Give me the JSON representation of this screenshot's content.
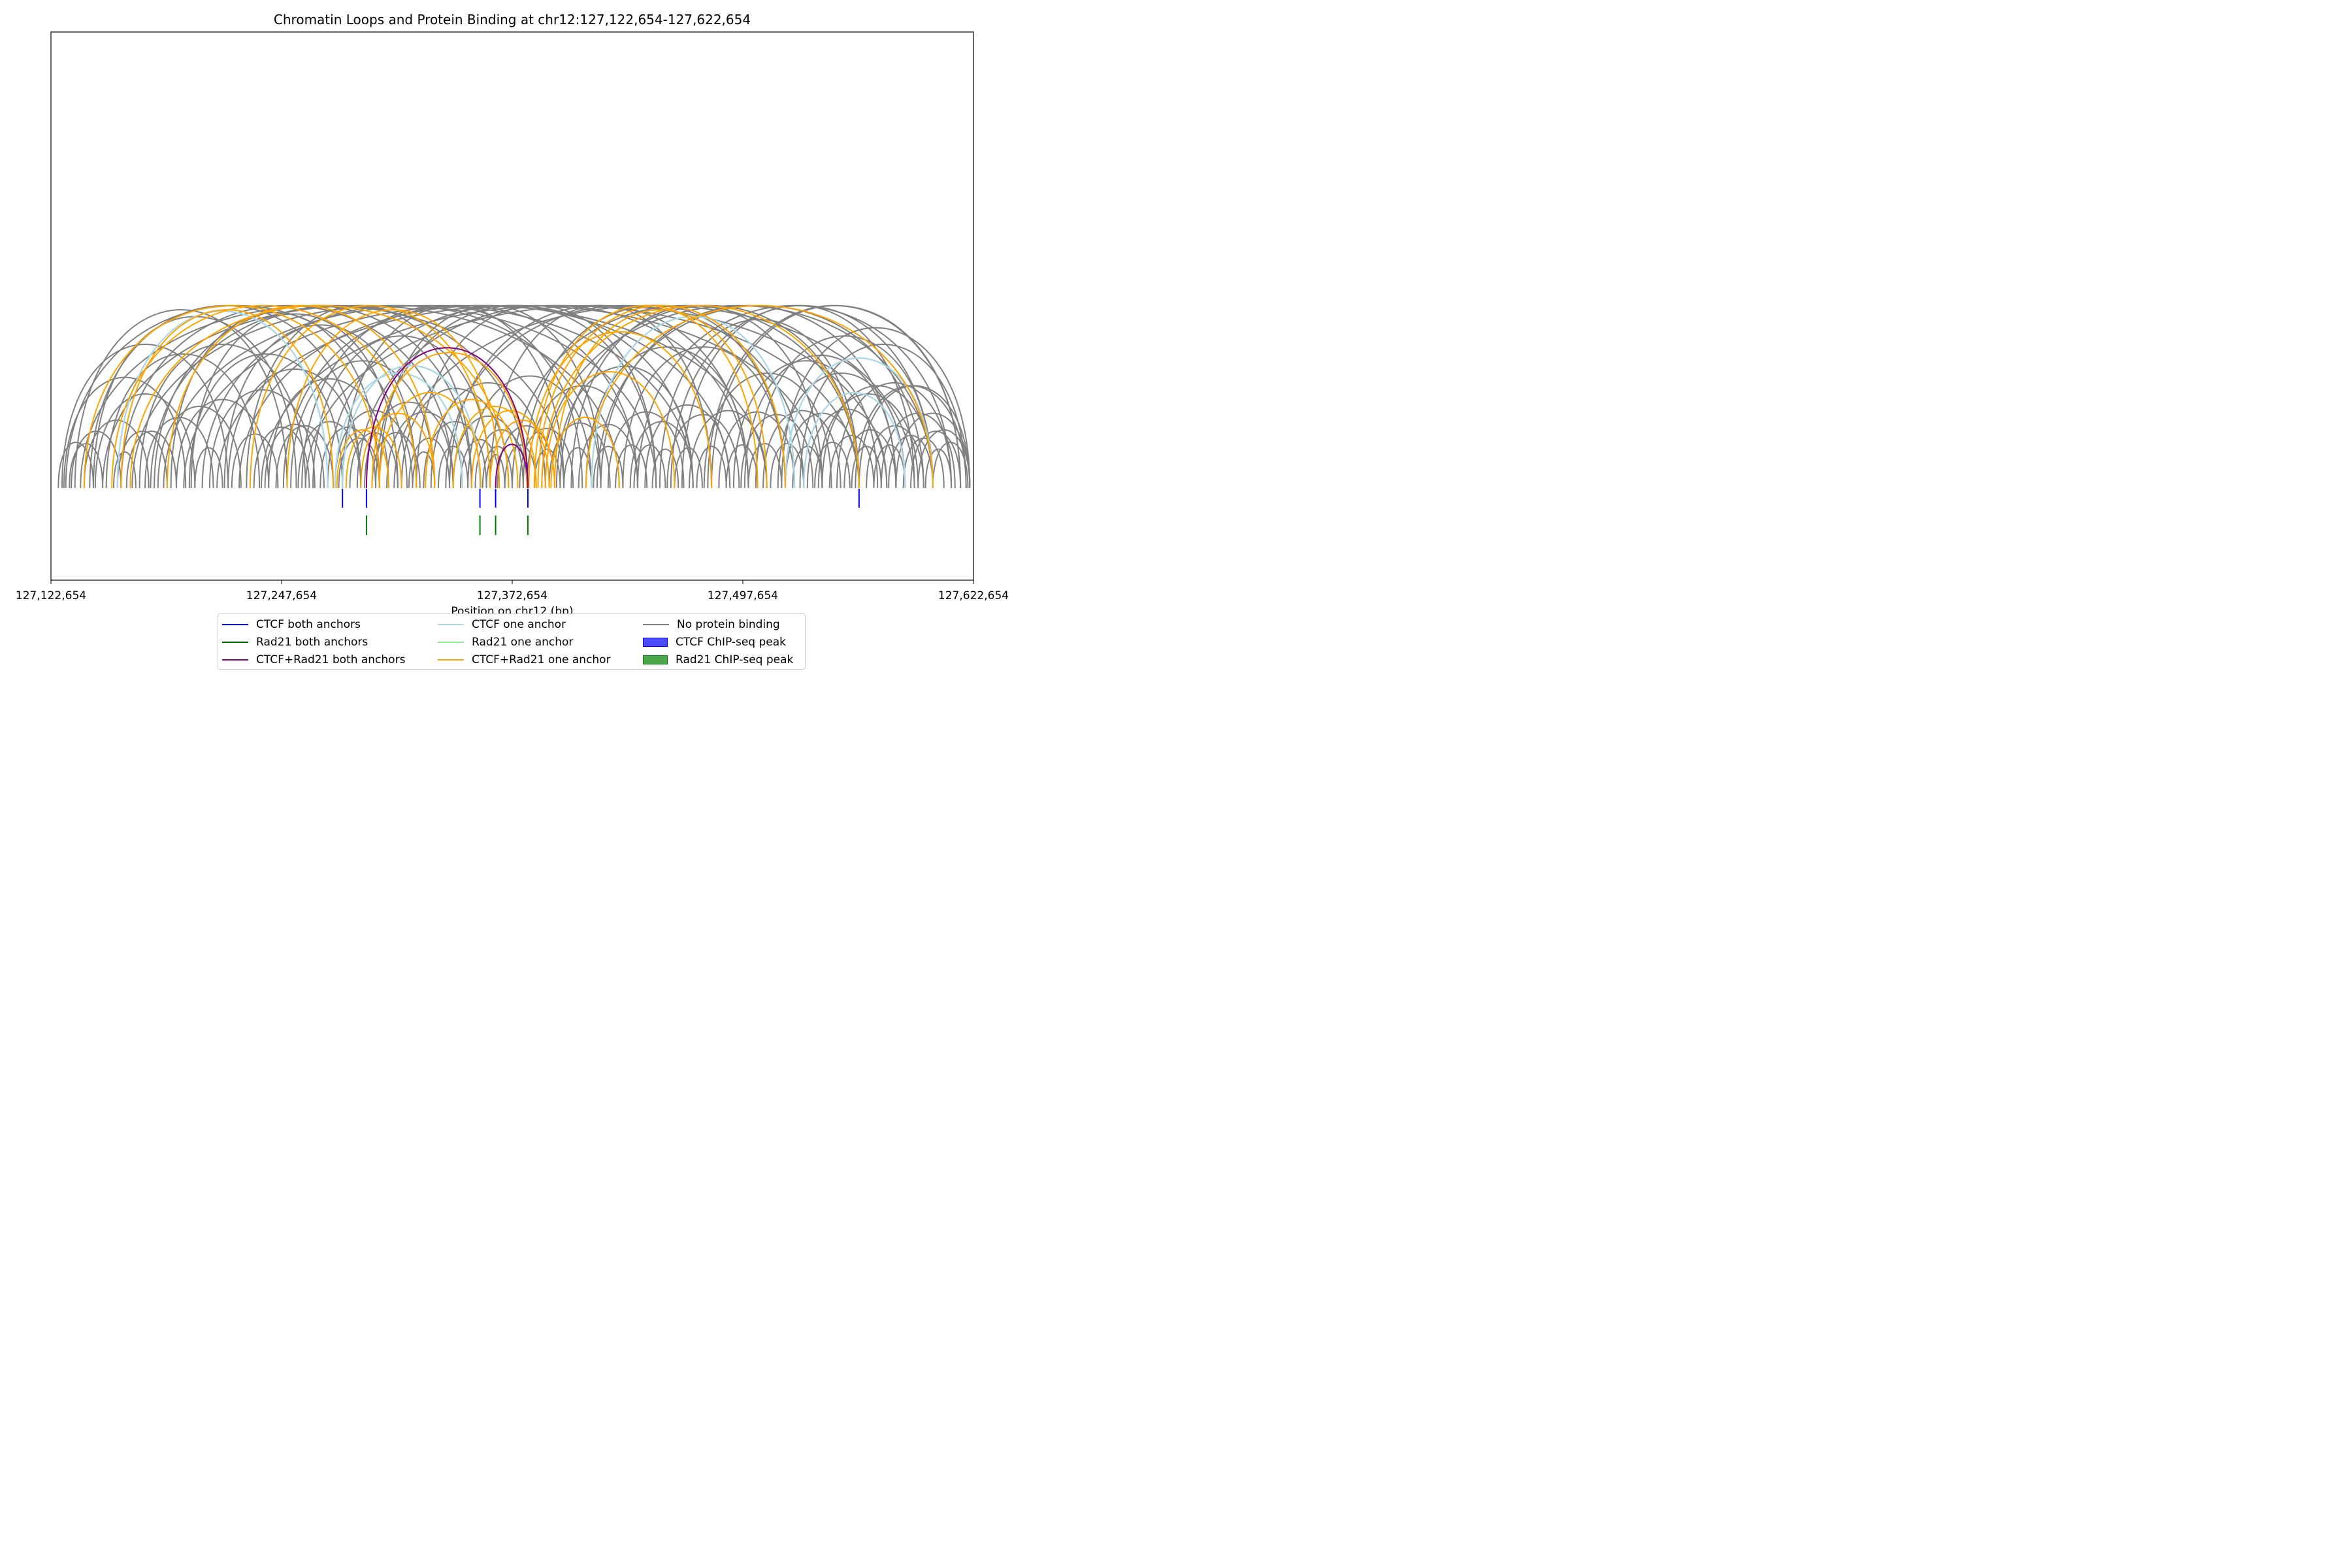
{
  "chart_data": {
    "type": "arc",
    "title": "Chromatin Loops and Protein Binding at chr12:127,122,654-127,622,654",
    "xlabel": "Position on chr12 (bp)",
    "ylabel": "",
    "xlim": [
      127122654,
      127622654
    ],
    "x_ticks": [
      "127,122,654",
      "127,247,654",
      "127,372,654",
      "127,497,654",
      "127,622,654"
    ],
    "x_tick_values": [
      127122654,
      127247654,
      127372654,
      127497654,
      127622654
    ],
    "colors": {
      "ctcf_both": "#0000ff",
      "rad21_both": "#006400",
      "both_both": "#800080",
      "ctcf_one": "#add8e6",
      "rad21_one": "#90ee90",
      "both_one": "#ffa500",
      "none": "#808080",
      "ctcf_peak": "#0000ff",
      "rad21_peak": "#008000"
    },
    "legend": {
      "ctcf_both": "CTCF both anchors",
      "rad21_both": "Rad21 both anchors",
      "both_both": "CTCF+Rad21 both anchors",
      "ctcf_one": "CTCF one anchor",
      "rad21_one": "Rad21 one anchor",
      "both_one": "CTCF+Rad21 one anchor",
      "none": "No protein binding",
      "ctcf_peak": "CTCF ChIP-seq peak",
      "rad21_peak": "Rad21 ChIP-seq peak"
    },
    "ctcf_peaks": [
      127280654,
      127293654,
      127355154,
      127363654,
      127381154,
      127560654
    ],
    "rad21_peaks": [
      127293654,
      127355154,
      127363654,
      127381154
    ],
    "loops": [
      {
        "start": 127293654,
        "end": 127381154,
        "category": "both_both"
      },
      {
        "start": 127363654,
        "end": 127381154,
        "category": "both_both"
      },
      {
        "start": 127280654,
        "end": 127355154,
        "category": "ctcf_one"
      },
      {
        "start": 127158654,
        "end": 127272654,
        "category": "ctcf_one"
      },
      {
        "start": 127415654,
        "end": 127525654,
        "category": "ctcf_one"
      },
      {
        "start": 127530654,
        "end": 127585654,
        "category": "ctcf_one"
      },
      {
        "start": 127520654,
        "end": 127600654,
        "category": "ctcf_one"
      },
      {
        "start": 127276654,
        "end": 127345654,
        "category": "ctcf_one"
      },
      {
        "start": 127160654,
        "end": 127275654,
        "category": "both_one"
      },
      {
        "start": 127140654,
        "end": 127300654,
        "category": "both_one"
      },
      {
        "start": 127155654,
        "end": 127320654,
        "category": "both_one"
      },
      {
        "start": 127165654,
        "end": 127370654,
        "category": "both_one"
      },
      {
        "start": 127185654,
        "end": 127330654,
        "category": "both_one"
      },
      {
        "start": 127230654,
        "end": 127360654,
        "category": "both_one"
      },
      {
        "start": 127250654,
        "end": 127365654,
        "category": "both_one"
      },
      {
        "start": 127277654,
        "end": 127305654,
        "category": "both_one"
      },
      {
        "start": 127282654,
        "end": 127312654,
        "category": "both_one"
      },
      {
        "start": 127290654,
        "end": 127330654,
        "category": "both_one"
      },
      {
        "start": 127300654,
        "end": 127355654,
        "category": "both_one"
      },
      {
        "start": 127325654,
        "end": 127375654,
        "category": "both_one"
      },
      {
        "start": 127340654,
        "end": 127385654,
        "category": "both_one"
      },
      {
        "start": 127350654,
        "end": 127392654,
        "category": "both_one"
      },
      {
        "start": 127360654,
        "end": 127395654,
        "category": "both_one"
      },
      {
        "start": 127381654,
        "end": 127480654,
        "category": "both_one"
      },
      {
        "start": 127384654,
        "end": 127505654,
        "category": "both_one"
      },
      {
        "start": 127386654,
        "end": 127520654,
        "category": "both_one"
      },
      {
        "start": 127388654,
        "end": 127560654,
        "category": "both_one"
      },
      {
        "start": 127390654,
        "end": 127460654,
        "category": "both_one"
      },
      {
        "start": 127393654,
        "end": 127430654,
        "category": "both_one"
      },
      {
        "start": 127412654,
        "end": 127600654,
        "category": "both_one"
      },
      {
        "start": 127395654,
        "end": 127510654,
        "category": "both_one"
      },
      {
        "start": 127296654,
        "end": 127380654,
        "category": "both_one"
      },
      {
        "start": 127128654,
        "end": 127218654,
        "category": "none"
      },
      {
        "start": 127130654,
        "end": 127315654,
        "category": "none"
      },
      {
        "start": 127133654,
        "end": 127160654,
        "category": "none"
      },
      {
        "start": 127135654,
        "end": 127250654,
        "category": "none"
      },
      {
        "start": 127138654,
        "end": 127400654,
        "category": "none"
      },
      {
        "start": 127140654,
        "end": 127175654,
        "category": "none"
      },
      {
        "start": 127143654,
        "end": 127290654,
        "category": "none"
      },
      {
        "start": 127146654,
        "end": 127200654,
        "category": "none"
      },
      {
        "start": 127150654,
        "end": 127430654,
        "category": "none"
      },
      {
        "start": 127152654,
        "end": 127235654,
        "category": "none"
      },
      {
        "start": 127156654,
        "end": 127168654,
        "category": "none"
      },
      {
        "start": 127160654,
        "end": 127340654,
        "category": "none"
      },
      {
        "start": 127163654,
        "end": 127190654,
        "category": "none"
      },
      {
        "start": 127166654,
        "end": 127450654,
        "category": "none"
      },
      {
        "start": 127170654,
        "end": 127260654,
        "category": "none"
      },
      {
        "start": 127173654,
        "end": 127210654,
        "category": "none"
      },
      {
        "start": 127176654,
        "end": 127380654,
        "category": "none"
      },
      {
        "start": 127180654,
        "end": 127225654,
        "category": "none"
      },
      {
        "start": 127183654,
        "end": 127470654,
        "category": "none"
      },
      {
        "start": 127187654,
        "end": 127300654,
        "category": "none"
      },
      {
        "start": 127190654,
        "end": 127240654,
        "category": "none"
      },
      {
        "start": 127194654,
        "end": 127510654,
        "category": "none"
      },
      {
        "start": 127197654,
        "end": 127280654,
        "category": "none"
      },
      {
        "start": 127200654,
        "end": 127215654,
        "category": "none"
      },
      {
        "start": 127204654,
        "end": 127420654,
        "category": "none"
      },
      {
        "start": 127208654,
        "end": 127265654,
        "category": "none"
      },
      {
        "start": 127212654,
        "end": 127540654,
        "category": "none"
      },
      {
        "start": 127216654,
        "end": 127320654,
        "category": "none"
      },
      {
        "start": 127220654,
        "end": 127245654,
        "category": "none"
      },
      {
        "start": 127224654,
        "end": 127490654,
        "category": "none"
      },
      {
        "start": 127228654,
        "end": 127350654,
        "category": "none"
      },
      {
        "start": 127232654,
        "end": 127262654,
        "category": "none"
      },
      {
        "start": 127236654,
        "end": 127560654,
        "category": "none"
      },
      {
        "start": 127240654,
        "end": 127305654,
        "category": "none"
      },
      {
        "start": 127244654,
        "end": 127275654,
        "category": "none"
      },
      {
        "start": 127248654,
        "end": 127440654,
        "category": "none"
      },
      {
        "start": 127252654,
        "end": 127330654,
        "category": "none"
      },
      {
        "start": 127256654,
        "end": 127290654,
        "category": "none"
      },
      {
        "start": 127260654,
        "end": 127575654,
        "category": "none"
      },
      {
        "start": 127264654,
        "end": 127360654,
        "category": "none"
      },
      {
        "start": 127268654,
        "end": 127298654,
        "category": "none"
      },
      {
        "start": 127272654,
        "end": 127470654,
        "category": "none"
      },
      {
        "start": 127276654,
        "end": 127318654,
        "category": "none"
      },
      {
        "start": 127280654,
        "end": 127400654,
        "category": "none"
      },
      {
        "start": 127284654,
        "end": 127310654,
        "category": "none"
      },
      {
        "start": 127288654,
        "end": 127500654,
        "category": "none"
      },
      {
        "start": 127292654,
        "end": 127340654,
        "category": "none"
      },
      {
        "start": 127296654,
        "end": 127322654,
        "category": "none"
      },
      {
        "start": 127300654,
        "end": 127420654,
        "category": "none"
      },
      {
        "start": 127304654,
        "end": 127345654,
        "category": "none"
      },
      {
        "start": 127308654,
        "end": 127590654,
        "category": "none"
      },
      {
        "start": 127312654,
        "end": 127370654,
        "category": "none"
      },
      {
        "start": 127316654,
        "end": 127338654,
        "category": "none"
      },
      {
        "start": 127320654,
        "end": 127450654,
        "category": "none"
      },
      {
        "start": 127324654,
        "end": 127358654,
        "category": "none"
      },
      {
        "start": 127328654,
        "end": 127390654,
        "category": "none"
      },
      {
        "start": 127332654,
        "end": 127348654,
        "category": "none"
      },
      {
        "start": 127336654,
        "end": 127530654,
        "category": "none"
      },
      {
        "start": 127340654,
        "end": 127378654,
        "category": "none"
      },
      {
        "start": 127344654,
        "end": 127365654,
        "category": "none"
      },
      {
        "start": 127348654,
        "end": 127415654,
        "category": "none"
      },
      {
        "start": 127352654,
        "end": 127380654,
        "category": "none"
      },
      {
        "start": 127356654,
        "end": 127372654,
        "category": "none"
      },
      {
        "start": 127360654,
        "end": 127480654,
        "category": "none"
      },
      {
        "start": 127364654,
        "end": 127395654,
        "category": "none"
      },
      {
        "start": 127368654,
        "end": 127385654,
        "category": "none"
      },
      {
        "start": 127372654,
        "end": 127560654,
        "category": "none"
      },
      {
        "start": 127376654,
        "end": 127405654,
        "category": "none"
      },
      {
        "start": 127380654,
        "end": 127440654,
        "category": "none"
      },
      {
        "start": 127384654,
        "end": 127398654,
        "category": "none"
      },
      {
        "start": 127388654,
        "end": 127600654,
        "category": "none"
      },
      {
        "start": 127392654,
        "end": 127425654,
        "category": "none"
      },
      {
        "start": 127396654,
        "end": 127470654,
        "category": "none"
      },
      {
        "start": 127400654,
        "end": 127415654,
        "category": "none"
      },
      {
        "start": 127404654,
        "end": 127540654,
        "category": "none"
      },
      {
        "start": 127408654,
        "end": 127440654,
        "category": "none"
      },
      {
        "start": 127412654,
        "end": 127500654,
        "category": "none"
      },
      {
        "start": 127416654,
        "end": 127432654,
        "category": "none"
      },
      {
        "start": 127420654,
        "end": 127580654,
        "category": "none"
      },
      {
        "start": 127424654,
        "end": 127465654,
        "category": "none"
      },
      {
        "start": 127428654,
        "end": 127445654,
        "category": "none"
      },
      {
        "start": 127432654,
        "end": 127520654,
        "category": "none"
      },
      {
        "start": 127436654,
        "end": 127470654,
        "category": "none"
      },
      {
        "start": 127440654,
        "end": 127610654,
        "category": "none"
      },
      {
        "start": 127444654,
        "end": 127490654,
        "category": "none"
      },
      {
        "start": 127448654,
        "end": 127462654,
        "category": "none"
      },
      {
        "start": 127452654,
        "end": 127560654,
        "category": "none"
      },
      {
        "start": 127456654,
        "end": 127495654,
        "category": "none"
      },
      {
        "start": 127460654,
        "end": 127475654,
        "category": "none"
      },
      {
        "start": 127464654,
        "end": 127590654,
        "category": "none"
      },
      {
        "start": 127468654,
        "end": 127510654,
        "category": "none"
      },
      {
        "start": 127472654,
        "end": 127488654,
        "category": "none"
      },
      {
        "start": 127476654,
        "end": 127545654,
        "category": "none"
      },
      {
        "start": 127480654,
        "end": 127615654,
        "category": "none"
      },
      {
        "start": 127484654,
        "end": 127525654,
        "category": "none"
      },
      {
        "start": 127488654,
        "end": 127505654,
        "category": "none"
      },
      {
        "start": 127492654,
        "end": 127570654,
        "category": "none"
      },
      {
        "start": 127496654,
        "end": 127535654,
        "category": "none"
      },
      {
        "start": 127500654,
        "end": 127518654,
        "category": "none"
      },
      {
        "start": 127504654,
        "end": 127600654,
        "category": "none"
      },
      {
        "start": 127508654,
        "end": 127550654,
        "category": "none"
      },
      {
        "start": 127512654,
        "end": 127530654,
        "category": "none"
      },
      {
        "start": 127516654,
        "end": 127585654,
        "category": "none"
      },
      {
        "start": 127520654,
        "end": 127560654,
        "category": "none"
      },
      {
        "start": 127524654,
        "end": 127540654,
        "category": "none"
      },
      {
        "start": 127528654,
        "end": 127618654,
        "category": "none"
      },
      {
        "start": 127532654,
        "end": 127575654,
        "category": "none"
      },
      {
        "start": 127536654,
        "end": 127555654,
        "category": "none"
      },
      {
        "start": 127540654,
        "end": 127600654,
        "category": "none"
      },
      {
        "start": 127544654,
        "end": 127568654,
        "category": "none"
      },
      {
        "start": 127548654,
        "end": 127610654,
        "category": "none"
      },
      {
        "start": 127552654,
        "end": 127580654,
        "category": "none"
      },
      {
        "start": 127556654,
        "end": 127572654,
        "category": "none"
      },
      {
        "start": 127560654,
        "end": 127620654,
        "category": "none"
      },
      {
        "start": 127564654,
        "end": 127595654,
        "category": "none"
      },
      {
        "start": 127568654,
        "end": 127585654,
        "category": "none"
      },
      {
        "start": 127572654,
        "end": 127612654,
        "category": "none"
      },
      {
        "start": 127576654,
        "end": 127600654,
        "category": "none"
      },
      {
        "start": 127580654,
        "end": 127620654,
        "category": "none"
      },
      {
        "start": 127584654,
        "end": 127606654,
        "category": "none"
      },
      {
        "start": 127588654,
        "end": 127615654,
        "category": "none"
      },
      {
        "start": 127592654,
        "end": 127620654,
        "category": "none"
      },
      {
        "start": 127596654,
        "end": 127610654,
        "category": "none"
      },
      {
        "start": 127600654,
        "end": 127619654,
        "category": "none"
      },
      {
        "start": 127126654,
        "end": 127145654,
        "category": "none"
      },
      {
        "start": 127129654,
        "end": 127195654,
        "category": "none"
      },
      {
        "start": 127132654,
        "end": 127150654,
        "category": "none"
      },
      {
        "start": 127145654,
        "end": 127255654,
        "category": "none"
      },
      {
        "start": 127158654,
        "end": 127185654,
        "category": "none"
      },
      {
        "start": 127178654,
        "end": 127350654,
        "category": "none"
      },
      {
        "start": 127198654,
        "end": 127310654,
        "category": "none"
      },
      {
        "start": 127218654,
        "end": 127290654,
        "category": "none"
      },
      {
        "start": 127238654,
        "end": 127270654,
        "category": "none"
      },
      {
        "start": 127258654,
        "end": 127410654,
        "category": "none"
      },
      {
        "start": 127278654,
        "end": 127300654,
        "category": "none"
      },
      {
        "start": 127298654,
        "end": 127450654,
        "category": "none"
      },
      {
        "start": 127318654,
        "end": 127330654,
        "category": "none"
      },
      {
        "start": 127338654,
        "end": 127500654,
        "category": "none"
      },
      {
        "start": 127358654,
        "end": 127368654,
        "category": "none"
      },
      {
        "start": 127378654,
        "end": 127520654,
        "category": "none"
      },
      {
        "start": 127398654,
        "end": 127560654,
        "category": "none"
      },
      {
        "start": 127418654,
        "end": 127595654,
        "category": "none"
      },
      {
        "start": 127438654,
        "end": 127455654,
        "category": "none"
      },
      {
        "start": 127458654,
        "end": 127600654,
        "category": "none"
      },
      {
        "start": 127478654,
        "end": 127615654,
        "category": "none"
      },
      {
        "start": 127498654,
        "end": 127580654,
        "category": "none"
      },
      {
        "start": 127518654,
        "end": 127620654,
        "category": "none"
      },
      {
        "start": 127538654,
        "end": 127592654,
        "category": "none"
      },
      {
        "start": 127558654,
        "end": 127618654,
        "category": "none"
      }
    ]
  }
}
